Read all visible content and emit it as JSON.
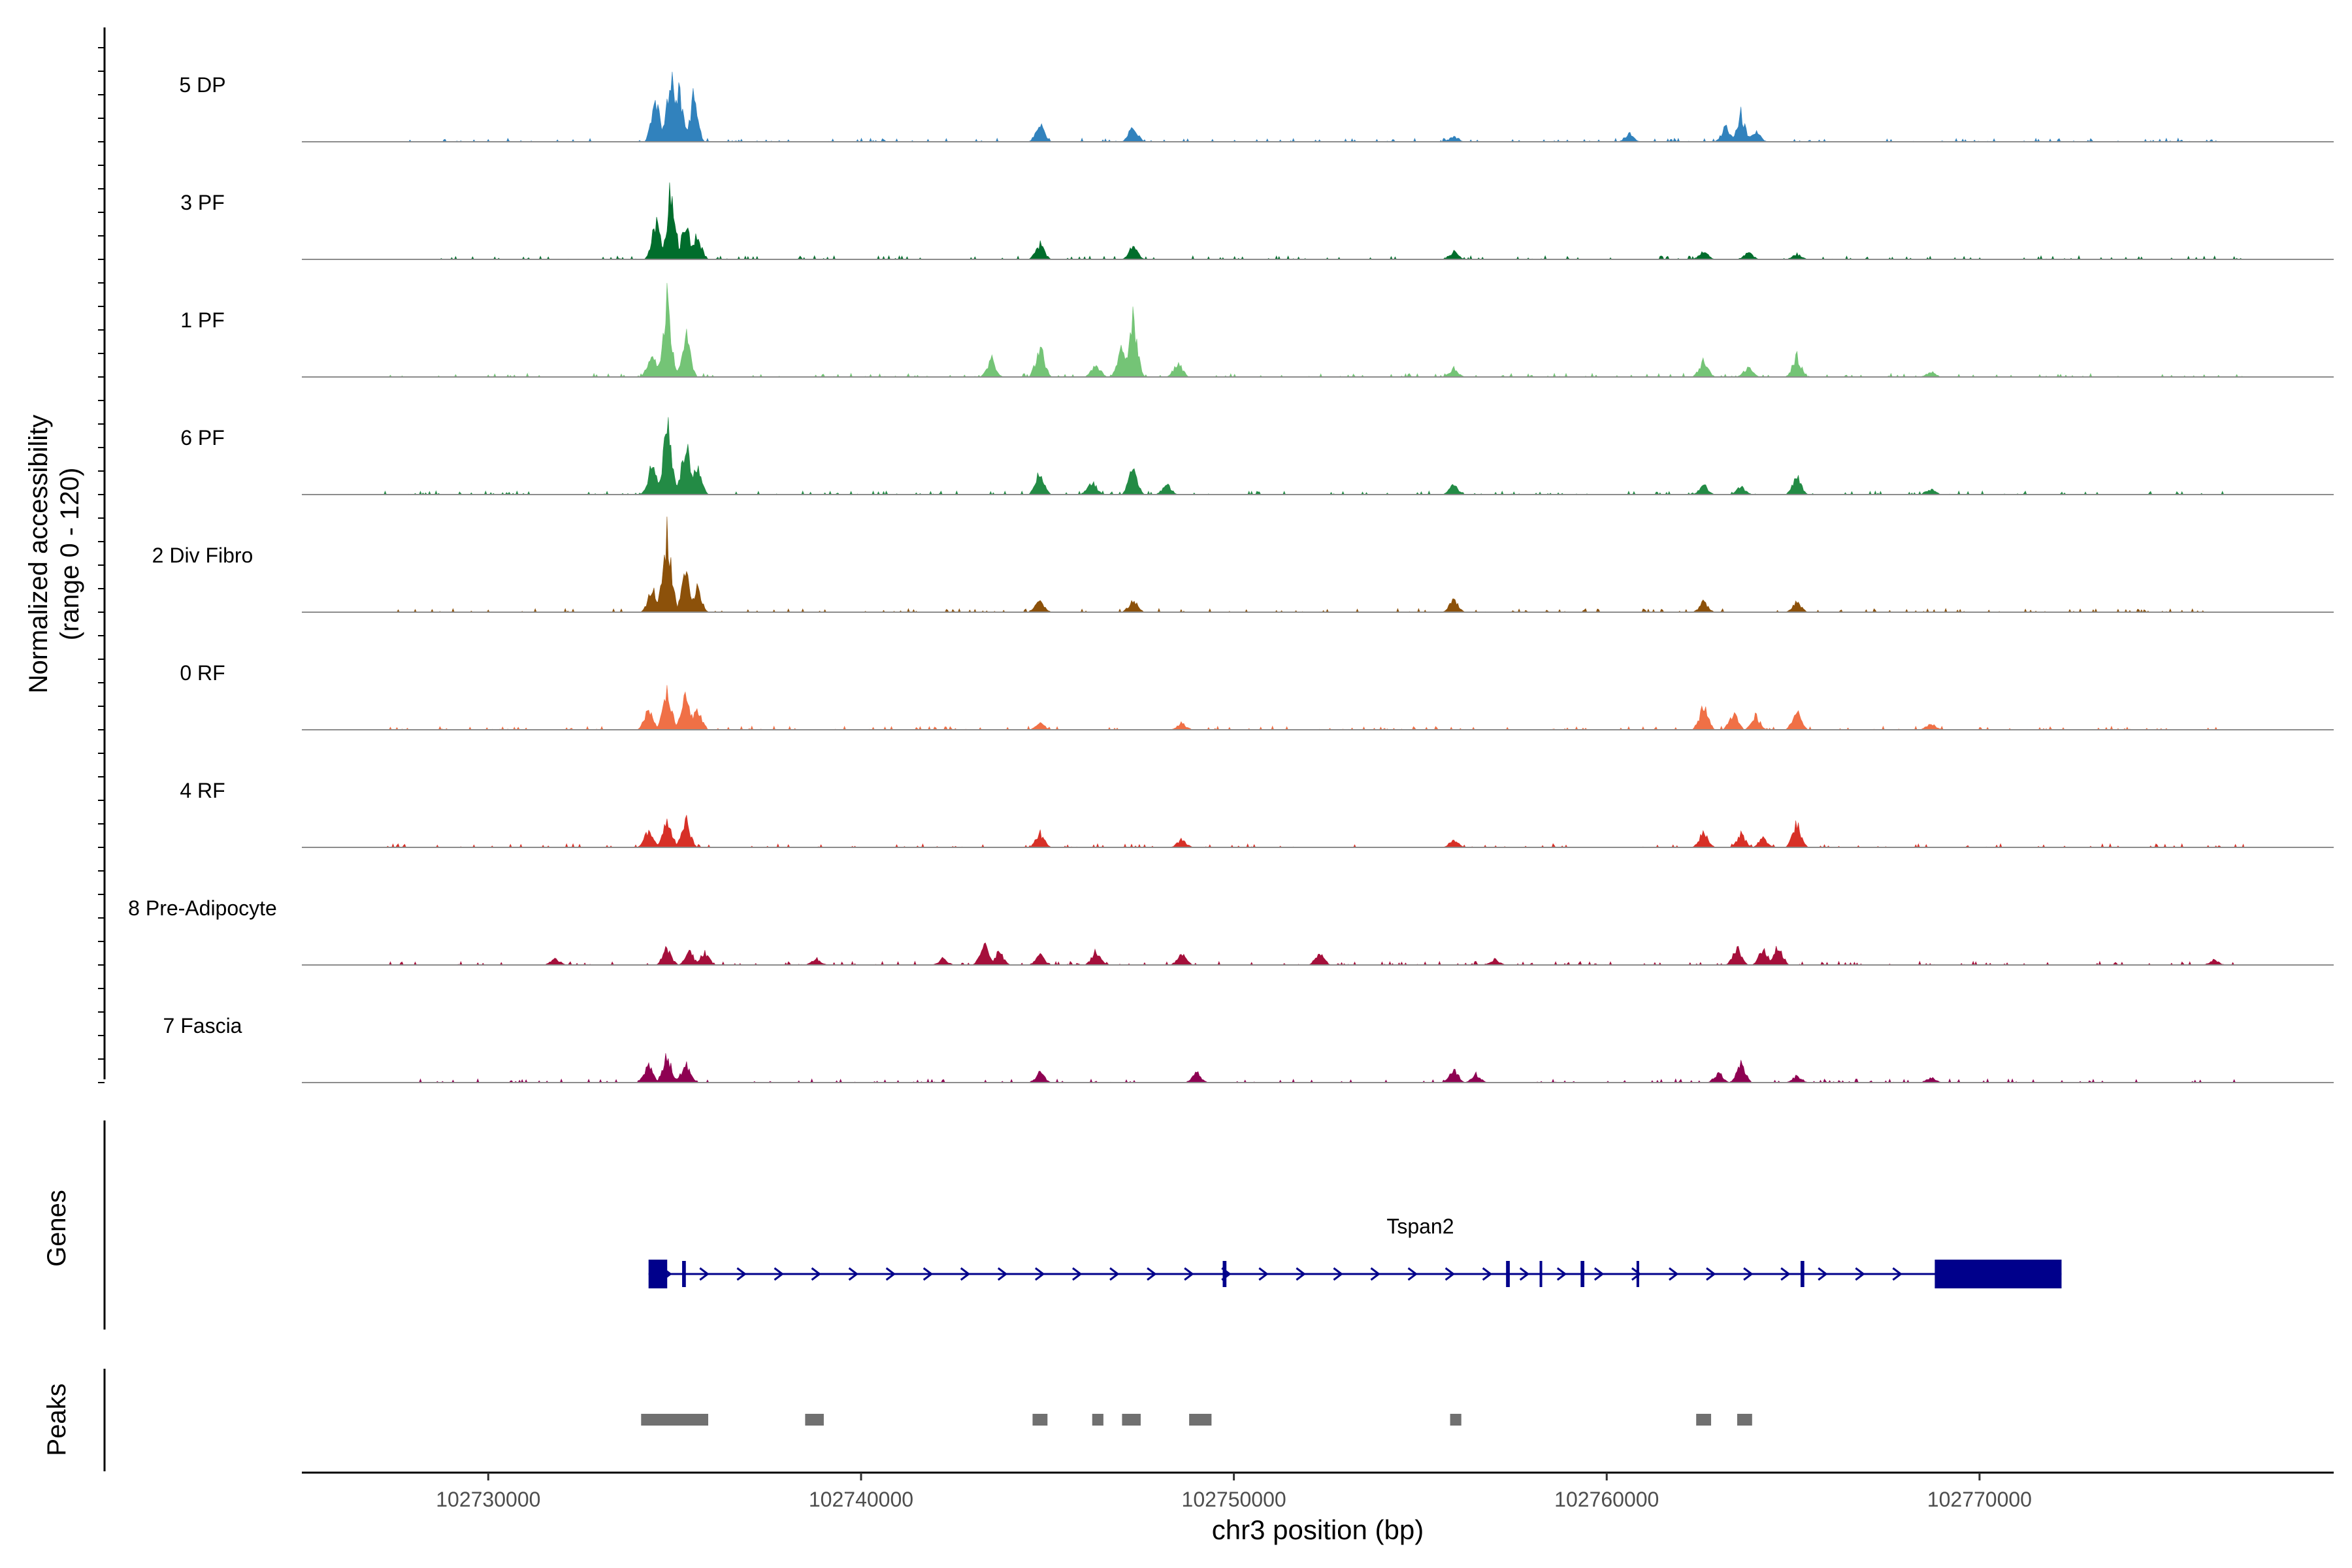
{
  "chart_data": {
    "type": "area",
    "ylabel_line1": "Normalized accessibility",
    "ylabel_line2": "(range 0 - 120)",
    "y_range": [
      0,
      120
    ],
    "xlabel": "chr3 position (bp)",
    "xlim": [
      102725000,
      102779500
    ],
    "x_ticks": [
      102730000,
      102740000,
      102750000,
      102760000,
      102770000
    ],
    "x_tick_labels": [
      "102730000",
      "102740000",
      "102750000",
      "102760000",
      "102770000"
    ],
    "peak_centers": [
      102734800,
      102735400,
      102744800,
      102747300,
      102749400,
      102755900,
      102762600,
      102763600,
      102765100
    ],
    "tracks": [
      {
        "name": "5 DP",
        "color": "#3182BD",
        "peaks": [
          [
            102734900,
            95
          ],
          [
            102734500,
            60
          ],
          [
            102735100,
            75
          ],
          [
            102735500,
            60
          ],
          [
            102744800,
            25
          ],
          [
            102747300,
            25
          ],
          [
            102755900,
            8
          ],
          [
            102760600,
            12
          ],
          [
            102763600,
            38
          ],
          [
            102763200,
            22
          ],
          [
            102764000,
            16
          ]
        ]
      },
      {
        "name": "3 PF",
        "color": "#006D2C",
        "peaks": [
          [
            102734900,
            100
          ],
          [
            102734500,
            55
          ],
          [
            102735300,
            55
          ],
          [
            102735600,
            35
          ],
          [
            102744800,
            22
          ],
          [
            102747300,
            20
          ],
          [
            102755900,
            12
          ],
          [
            102762600,
            12
          ],
          [
            102763800,
            10
          ],
          [
            102765100,
            8
          ]
        ]
      },
      {
        "name": "1 PF",
        "color": "#74C476",
        "peaks": [
          [
            102734800,
            110
          ],
          [
            102734400,
            40
          ],
          [
            102735300,
            60
          ],
          [
            102743500,
            25
          ],
          [
            102744800,
            45
          ],
          [
            102746300,
            20
          ],
          [
            102747300,
            85
          ],
          [
            102747000,
            45
          ],
          [
            102748500,
            22
          ],
          [
            102755900,
            12
          ],
          [
            102762600,
            25
          ],
          [
            102763800,
            15
          ],
          [
            102765100,
            30
          ],
          [
            102768700,
            8
          ]
        ]
      },
      {
        "name": "6 PF",
        "color": "#238B45",
        "peaks": [
          [
            102734800,
            100
          ],
          [
            102734400,
            45
          ],
          [
            102735300,
            75
          ],
          [
            102735600,
            40
          ],
          [
            102744800,
            35
          ],
          [
            102746200,
            20
          ],
          [
            102747300,
            40
          ],
          [
            102748200,
            15
          ],
          [
            102755900,
            15
          ],
          [
            102762600,
            15
          ],
          [
            102763600,
            12
          ],
          [
            102765100,
            28
          ],
          [
            102768700,
            8
          ]
        ]
      },
      {
        "name": "2 Div Fibro",
        "color": "#8C510A",
        "peaks": [
          [
            102734800,
            120
          ],
          [
            102734400,
            35
          ],
          [
            102735300,
            55
          ],
          [
            102735600,
            35
          ],
          [
            102744800,
            18
          ],
          [
            102747300,
            18
          ],
          [
            102755900,
            20
          ],
          [
            102762600,
            15
          ],
          [
            102765100,
            15
          ]
        ]
      },
      {
        "name": "0 RF",
        "color": "#F07046",
        "peaks": [
          [
            102734800,
            60
          ],
          [
            102734300,
            30
          ],
          [
            102735300,
            55
          ],
          [
            102735600,
            30
          ],
          [
            102744800,
            10
          ],
          [
            102748600,
            10
          ],
          [
            102762600,
            35
          ],
          [
            102763400,
            25
          ],
          [
            102764000,
            20
          ],
          [
            102765100,
            30
          ],
          [
            102768700,
            10
          ]
        ]
      },
      {
        "name": "4 RF",
        "color": "#D73027",
        "peaks": [
          [
            102734800,
            45
          ],
          [
            102734300,
            25
          ],
          [
            102735300,
            40
          ],
          [
            102744800,
            20
          ],
          [
            102748600,
            12
          ],
          [
            102755900,
            12
          ],
          [
            102762600,
            25
          ],
          [
            102763600,
            20
          ],
          [
            102764200,
            15
          ],
          [
            102765100,
            35
          ]
        ]
      },
      {
        "name": "8 Pre-Adipocyte",
        "color": "#A50F3B",
        "peaks": [
          [
            102731800,
            10
          ],
          [
            102734800,
            25
          ],
          [
            102735400,
            20
          ],
          [
            102735800,
            20
          ],
          [
            102738800,
            10
          ],
          [
            102742200,
            10
          ],
          [
            102743300,
            35
          ],
          [
            102743700,
            20
          ],
          [
            102744800,
            15
          ],
          [
            102746300,
            20
          ],
          [
            102748600,
            18
          ],
          [
            102752300,
            18
          ],
          [
            102757000,
            8
          ],
          [
            102763500,
            25
          ],
          [
            102764200,
            25
          ],
          [
            102764600,
            30
          ],
          [
            102776300,
            8
          ]
        ]
      },
      {
        "name": "7 Fascia",
        "color": "#8E0152",
        "peaks": [
          [
            102734800,
            40
          ],
          [
            102734300,
            25
          ],
          [
            102735300,
            30
          ],
          [
            102744800,
            15
          ],
          [
            102749000,
            15
          ],
          [
            102755900,
            20
          ],
          [
            102756500,
            12
          ],
          [
            102763600,
            30
          ],
          [
            102763000,
            15
          ],
          [
            102765100,
            10
          ],
          [
            102768700,
            8
          ]
        ]
      }
    ],
    "genes": {
      "label": "Genes",
      "name": "Tspan2",
      "start": 102734300,
      "end": 102772200,
      "strand": "+",
      "exons": [
        [
          102734300,
          102734800
        ],
        [
          102735200,
          102735300
        ],
        [
          102749700,
          102749800
        ],
        [
          102757300,
          102757400
        ],
        [
          102758200,
          102758250
        ],
        [
          102759300,
          102759400
        ],
        [
          102760800,
          102760850
        ],
        [
          102765200,
          102765300
        ],
        [
          102768800,
          102772200
        ]
      ]
    },
    "peaks": {
      "label": "Peaks",
      "regions": [
        [
          102734100,
          102735900
        ],
        [
          102738500,
          102739000
        ],
        [
          102744600,
          102745000
        ],
        [
          102746200,
          102746500
        ],
        [
          102747000,
          102747500
        ],
        [
          102748800,
          102749400
        ],
        [
          102755800,
          102756100
        ],
        [
          102762400,
          102762800
        ],
        [
          102763500,
          102763900
        ]
      ]
    }
  }
}
